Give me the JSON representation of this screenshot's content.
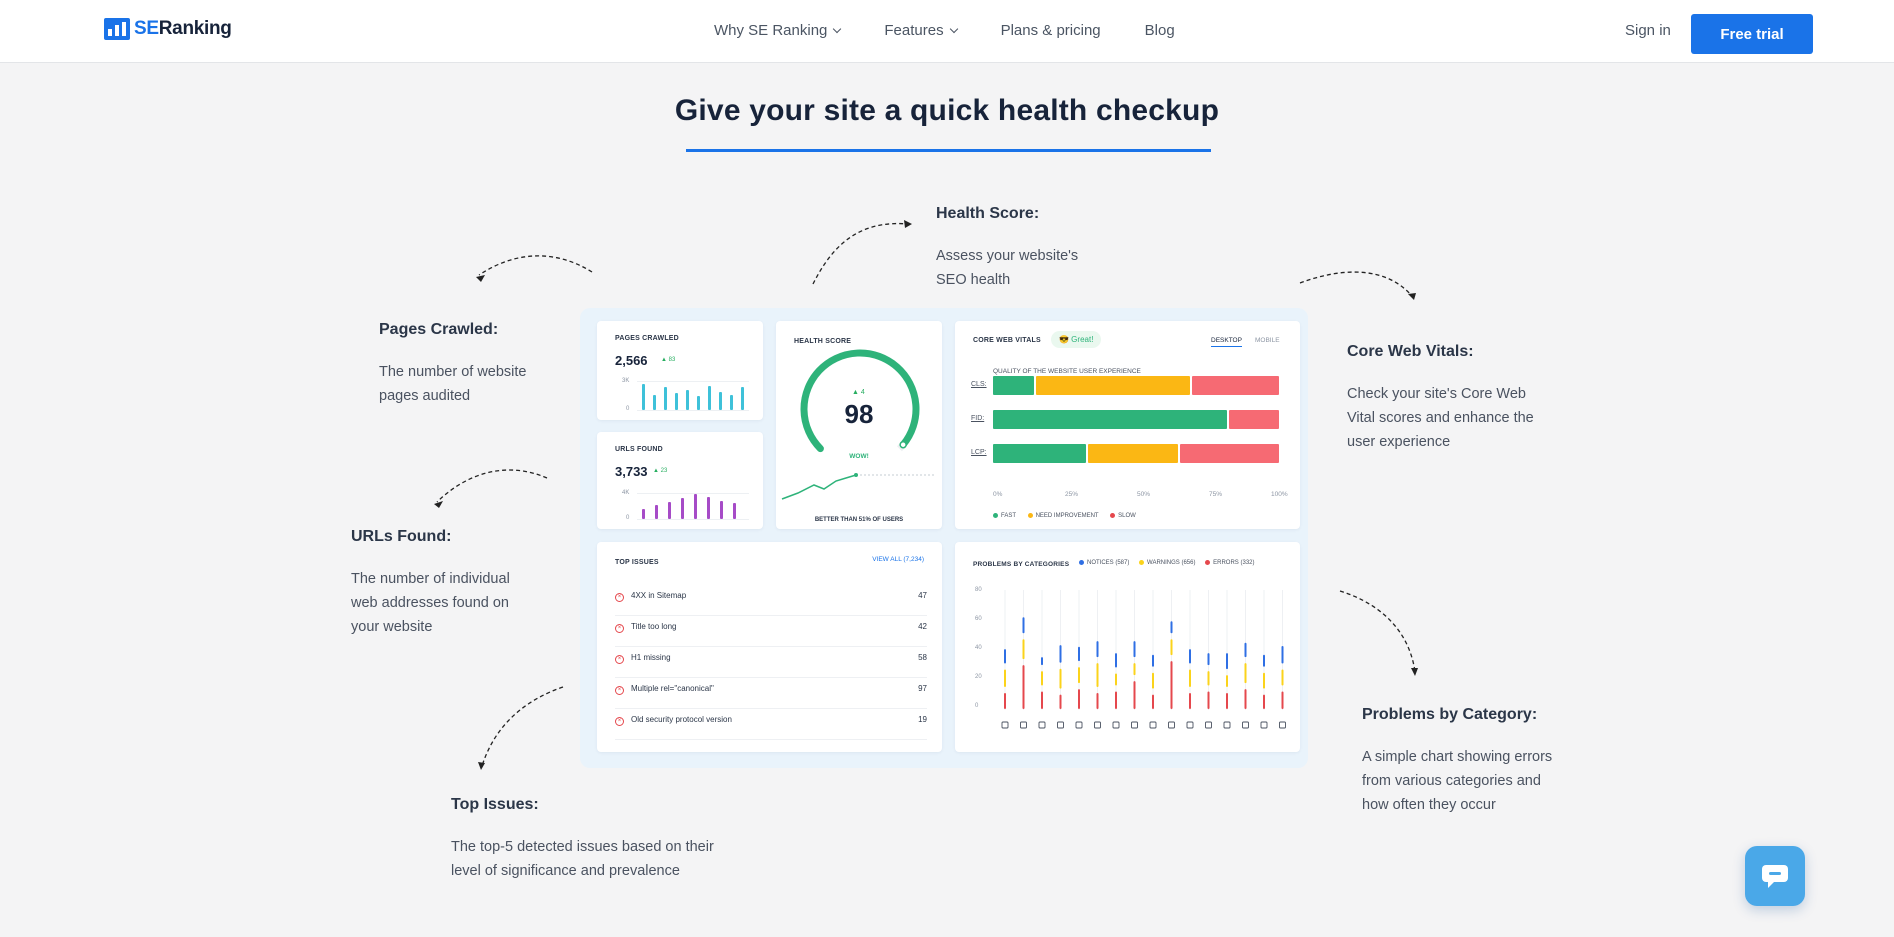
{
  "nav": {
    "logo_se": "SE",
    "logo_name": "Ranking",
    "links": [
      "Why SE Ranking",
      "Features",
      "Plans & pricing",
      "Blog"
    ],
    "sign_in": "Sign in",
    "free_trial": "Free trial"
  },
  "heading": "Give your site a quick health checkup",
  "annotations": {
    "health_score": {
      "title": "Health Score:",
      "desc": [
        "Assess your website's",
        "SEO health"
      ]
    },
    "pages_crawled": {
      "title": "Pages Crawled:",
      "desc": [
        "The number of website",
        "pages audited"
      ]
    },
    "core_web_vitals": {
      "title": "Core Web Vitals:",
      "desc": [
        "Check your site's Core Web",
        "Vital scores and enhance the",
        "user experience"
      ]
    },
    "urls_found": {
      "title": "URLs Found:",
      "desc": [
        "The number of individual",
        "web addresses found on",
        "your website"
      ]
    },
    "problems_by_category": {
      "title": "Problems by Category:",
      "desc": [
        "A simple chart showing errors",
        "from various categories and",
        "how often they occur"
      ]
    },
    "top_issues": {
      "title": "Top Issues:",
      "desc": [
        "The top-5 detected issues based on their",
        "level of significance and prevalence"
      ]
    }
  },
  "dashboard": {
    "pages_crawled": {
      "label": "PAGES CRAWLED",
      "value": "2,566",
      "delta": "▲ 83",
      "ticks": [
        "3K",
        "0"
      ],
      "bar_color": "#3ec1d9",
      "bars": [
        0.85,
        0.5,
        0.78,
        0.55,
        0.65,
        0.45,
        0.8,
        0.6,
        0.5,
        0.75
      ]
    },
    "urls_found": {
      "label": "URLS FOUND",
      "value": "3,733",
      "delta": "▲ 23",
      "ticks": [
        "4K",
        "0"
      ],
      "bar_color": "#a64bc7",
      "bars": [
        0.4,
        0.55,
        0.65,
        0.8,
        0.95,
        0.85,
        0.7,
        0.6
      ]
    },
    "health_score": {
      "label": "HEALTH SCORE",
      "value": "98",
      "delta": "▲ 4",
      "status": "WOW!",
      "footer": "BETTER THAN 51% OF USERS",
      "score": 98,
      "color": "#2eb37a"
    },
    "core_web_vitals": {
      "label": "CORE WEB VITALS",
      "badge": "😎 Great!",
      "tabs": [
        "DESKTOP",
        "MOBILE"
      ],
      "subtitle": "QUALITY OF THE WEBSITE USER EXPERIENCE",
      "rows": [
        {
          "name": "CLS:",
          "fast": 15,
          "need": 54,
          "slow": 31
        },
        {
          "name": "FID:",
          "fast": 82,
          "need": 0,
          "slow": 18
        },
        {
          "name": "LCP:",
          "fast": 33,
          "need": 32,
          "slow": 35
        }
      ],
      "axis": [
        "0%",
        "25%",
        "50%",
        "75%",
        "100%"
      ],
      "legend": [
        "FAST",
        "NEED IMPROVEMENT",
        "SLOW"
      ],
      "colors": {
        "fast": "#2eb37a",
        "need": "#fbb714",
        "slow": "#f66a73"
      }
    },
    "top_issues": {
      "label": "TOP ISSUES",
      "view_all": "VIEW ALL (7,234)",
      "items": [
        {
          "name": "4XX in Sitemap",
          "value": "47"
        },
        {
          "name": "Title too long",
          "value": "42"
        },
        {
          "name": "H1 missing",
          "value": "58"
        },
        {
          "name": "Multiple rel=\"canonical\"",
          "value": "97"
        },
        {
          "name": "Old security protocol version",
          "value": "19"
        }
      ]
    },
    "problems": {
      "label": "PROBLEMS BY CATEGORIES",
      "legend": [
        "NOTICES (587)",
        "WARNINGS (656)",
        "ERRORS (332)"
      ],
      "legend_colors": [
        "#2f6fe4",
        "#fbd31b",
        "#e5484d"
      ],
      "y_ticks": [
        "80",
        "60",
        "40",
        "20",
        "0"
      ],
      "icons": [
        "shield-icon",
        "doc-icon",
        "copy-icon",
        "pulse-icon",
        "text-icon",
        "underline-icon",
        "check-icon",
        "mobile-icon",
        "file-icon",
        "repeat-icon",
        "link-icon",
        "external-icon",
        "globe-icon",
        "image-icon",
        "code-box-icon",
        "code-icon"
      ]
    }
  }
}
